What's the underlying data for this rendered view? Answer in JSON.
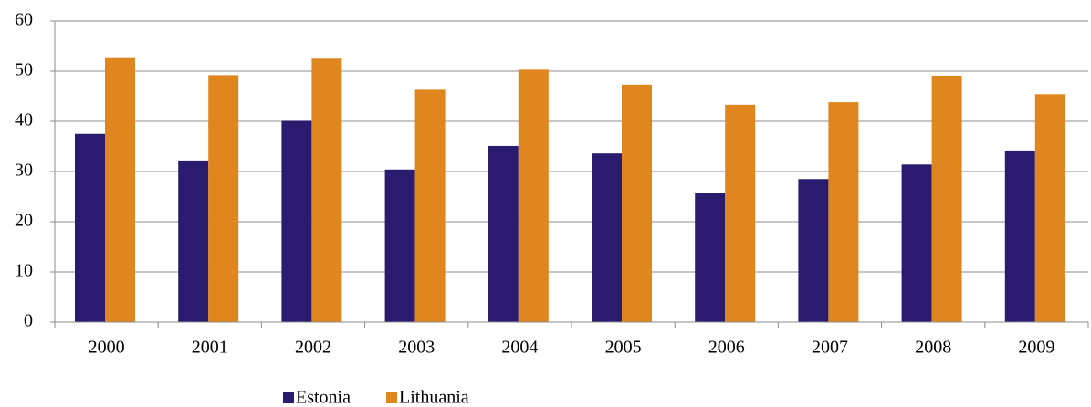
{
  "chart_data": {
    "type": "bar",
    "categories": [
      "2000",
      "2001",
      "2002",
      "2003",
      "2004",
      "2005",
      "2006",
      "2007",
      "2008",
      "2009"
    ],
    "series": [
      {
        "name": "Estonia",
        "color": "#2b1b6e",
        "values": [
          37.5,
          32.2,
          40.1,
          30.4,
          35.1,
          33.6,
          25.8,
          28.5,
          31.4,
          34.2
        ]
      },
      {
        "name": "Lithuania",
        "color": "#e0861f",
        "values": [
          52.6,
          49.2,
          52.5,
          46.3,
          50.3,
          47.3,
          43.3,
          43.8,
          49.1,
          45.4
        ]
      }
    ],
    "ylim": [
      0,
      60
    ],
    "yticks": [
      0,
      10,
      20,
      30,
      40,
      50,
      60
    ],
    "grid": true,
    "legend": "bottom"
  }
}
